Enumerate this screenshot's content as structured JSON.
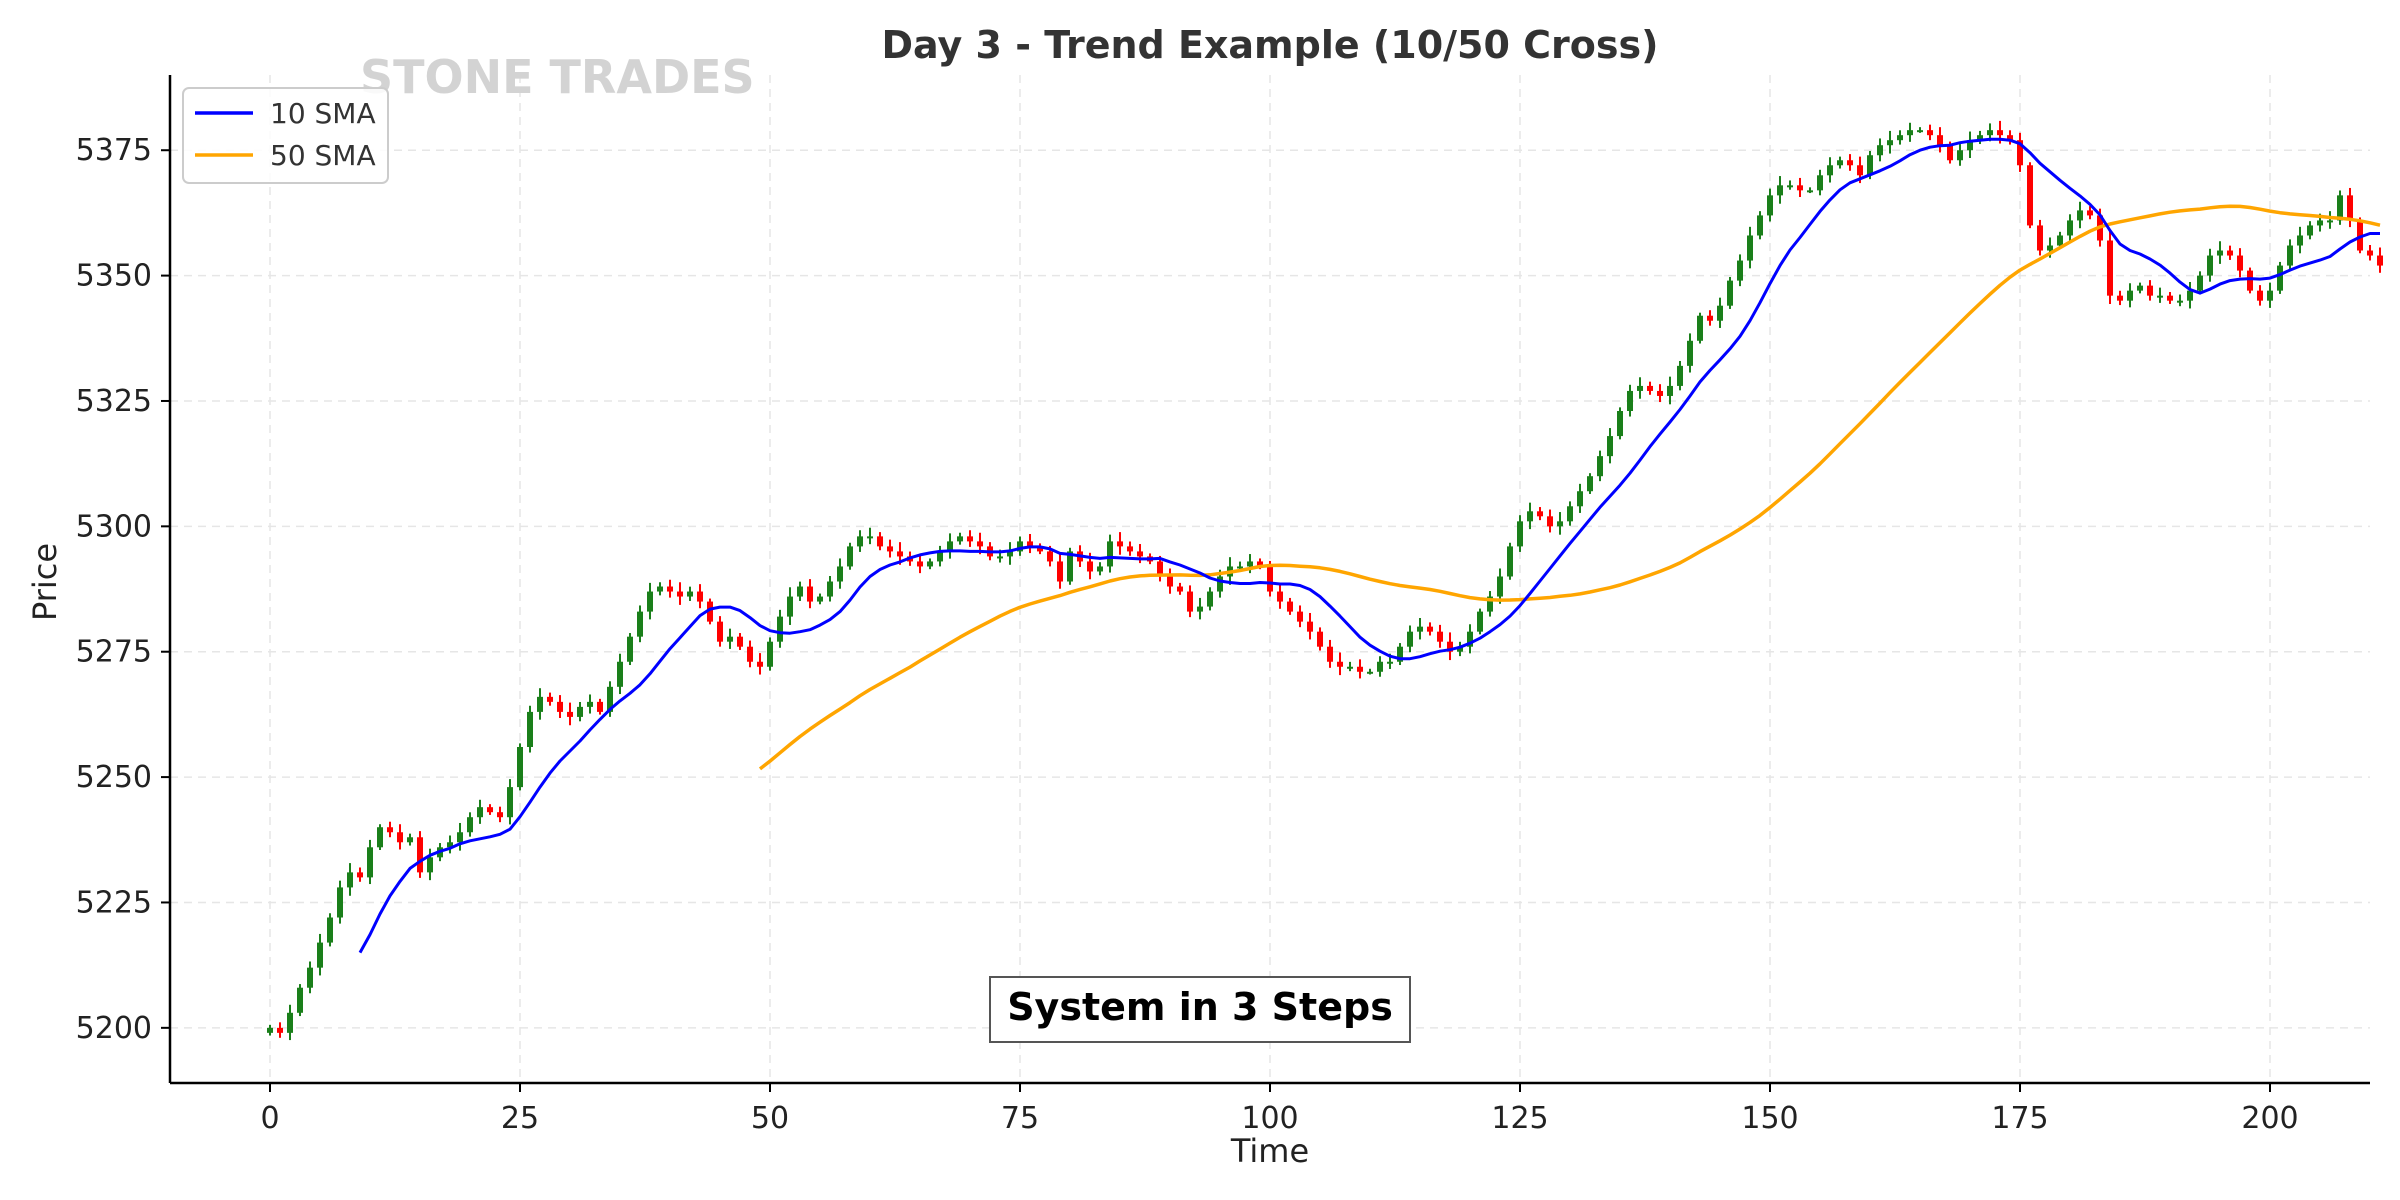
{
  "colors": {
    "bullish": "#1a7f1a",
    "bearish": "#ff0000",
    "sma10": "#0000ff",
    "sma50": "#ffa500",
    "watermark": "#d3d3d3"
  },
  "watermark": "STONE TRADES",
  "chart_data": {
    "type": "candlestick",
    "title": "Day 3 - Trend Example (10/50 Cross)",
    "xlabel": "Time",
    "ylabel": "Price",
    "xlim": [
      -10,
      210
    ],
    "ylim": [
      5189,
      5390
    ],
    "xticks": [
      0,
      25,
      50,
      75,
      100,
      125,
      150,
      175,
      200
    ],
    "yticks": [
      5200,
      5225,
      5250,
      5275,
      5300,
      5325,
      5350,
      5375
    ],
    "grid": true,
    "legend_position": "top-left",
    "annotation": "System in 3 Steps",
    "closes": [
      5200,
      5199,
      5203,
      5208,
      5212,
      5217,
      5222,
      5228,
      5231,
      5230,
      5236,
      5240,
      5239,
      5237,
      5238,
      5231,
      5234,
      5236,
      5237,
      5239,
      5242,
      5244,
      5243,
      5242,
      5248,
      5256,
      5263,
      5266,
      5265,
      5263,
      5262,
      5264,
      5265,
      5263,
      5268,
      5273,
      5278,
      5283,
      5287,
      5288,
      5287,
      5286,
      5287,
      5285,
      5281,
      5277,
      5278,
      5276,
      5273,
      5272,
      5277,
      5282,
      5286,
      5288,
      5285,
      5286,
      5289,
      5292,
      5296,
      5298,
      5298,
      5296,
      5295,
      5294,
      5293,
      5292,
      5293,
      5295,
      5297,
      5298,
      5297,
      5296,
      5294,
      5294,
      5295,
      5297,
      5296,
      5295,
      5293,
      5289,
      5295,
      5293,
      5291,
      5292,
      5297,
      5296,
      5295,
      5294,
      5293,
      5290,
      5288,
      5287,
      5283,
      5284,
      5287,
      5290,
      5292,
      5292,
      5293,
      5292,
      5287,
      5285,
      5283,
      5281,
      5279,
      5276,
      5273,
      5272,
      5272,
      5271,
      5271,
      5273,
      5273,
      5276,
      5279,
      5280,
      5279,
      5277,
      5275,
      5276,
      5279,
      5283,
      5286,
      5290,
      5296,
      5301,
      5303,
      5302,
      5300,
      5301,
      5304,
      5307,
      5310,
      5314,
      5318,
      5323,
      5327,
      5328,
      5327,
      5326,
      5328,
      5332,
      5337,
      5342,
      5341,
      5344,
      5349,
      5353,
      5358,
      5362,
      5366,
      5368,
      5368,
      5367,
      5367,
      5370,
      5372,
      5373,
      5372,
      5370,
      5374,
      5376,
      5377,
      5378,
      5379,
      5379,
      5378,
      5376,
      5373,
      5375,
      5377,
      5378,
      5379,
      5378,
      5377,
      5372,
      5360,
      5355,
      5356,
      5358,
      5361,
      5363,
      5362,
      5357,
      5346,
      5345,
      5347,
      5348,
      5346,
      5346,
      5345,
      5345,
      5347,
      5350,
      5354,
      5355,
      5354,
      5351,
      5347,
      5345,
      5347,
      5352,
      5356,
      5358,
      5360,
      5361,
      5361,
      5366,
      5361,
      5355,
      5354,
      5352
    ],
    "sma10_start": 9,
    "sma50_start": 49
  },
  "series": [
    {
      "name": "10 SMA",
      "color": "#0000ff"
    },
    {
      "name": "50 SMA",
      "color": "#ffa500"
    }
  ]
}
